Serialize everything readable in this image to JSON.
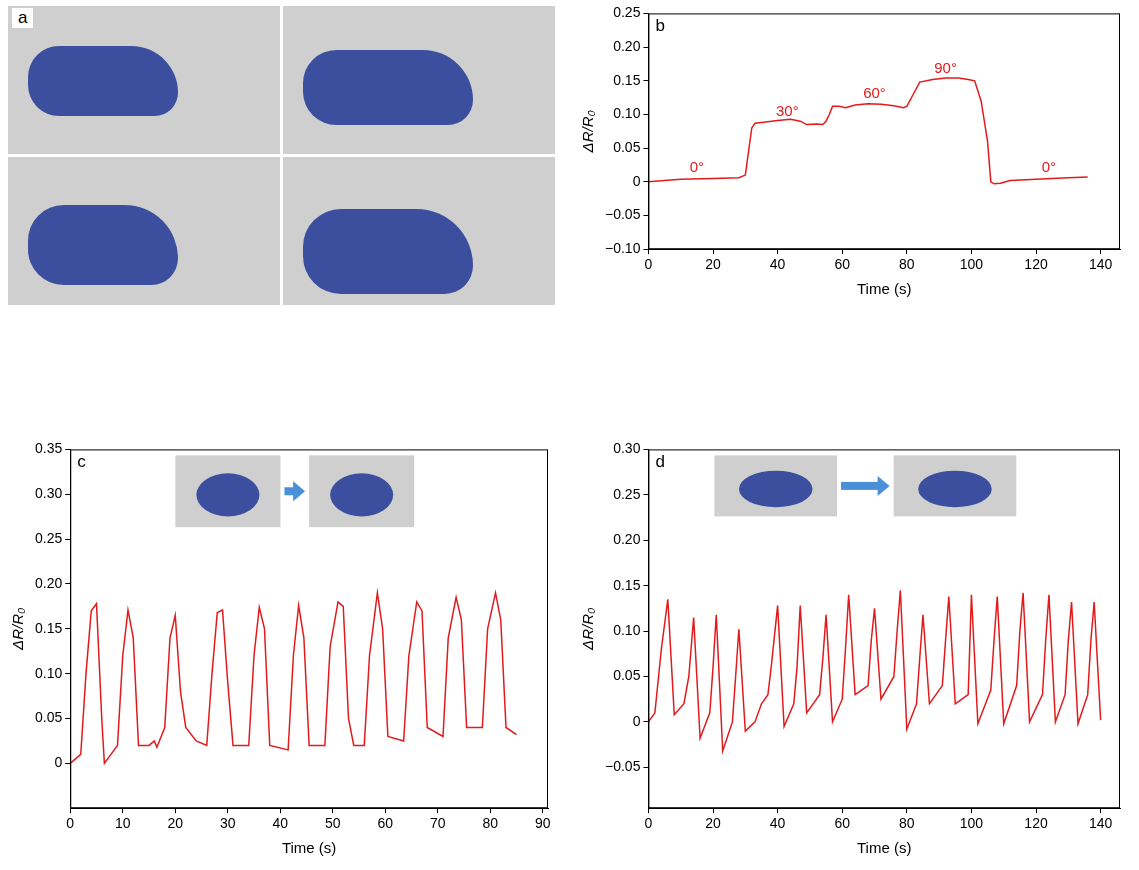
{
  "photo_panel": {
    "panel": "a"
  },
  "chart_data": [
    {
      "panel": "b",
      "type": "line",
      "x_label": "Time (s)",
      "y_label": "ΔR/R₀",
      "color": "#e31a1c",
      "grid": false,
      "x": [
        0,
        5,
        10,
        20,
        28,
        30,
        32,
        33,
        35,
        40,
        44,
        47,
        49,
        52,
        54,
        55,
        56,
        57,
        59,
        61,
        64,
        68,
        72,
        76,
        79,
        80,
        82,
        84,
        88,
        92,
        96,
        99,
        101,
        103,
        105,
        106,
        107,
        109,
        112,
        120,
        130,
        136
      ],
      "values": [
        0,
        0.002,
        0.004,
        0.005,
        0.006,
        0.01,
        0.08,
        0.087,
        0.088,
        0.091,
        0.093,
        0.09,
        0.085,
        0.086,
        0.085,
        0.09,
        0.1,
        0.112,
        0.112,
        0.11,
        0.114,
        0.116,
        0.115,
        0.113,
        0.11,
        0.112,
        0.13,
        0.148,
        0.152,
        0.154,
        0.154,
        0.152,
        0.15,
        0.12,
        0.06,
        0,
        -0.003,
        -0.002,
        0.002,
        0.004,
        0.006,
        0.007
      ],
      "xlim": [
        0,
        146
      ],
      "xticks": [
        0,
        20,
        40,
        60,
        80,
        100,
        120,
        140
      ],
      "ylim": [
        -0.1,
        0.25
      ],
      "yticks": [
        {
          "value": -0.1,
          "label": "−0.10"
        },
        {
          "value": -0.05,
          "label": "−0.05"
        },
        0,
        0.05,
        {
          "value": 0.1,
          "label": "0.10"
        },
        0.15,
        {
          "value": 0.2,
          "label": "0.20"
        },
        0.25
      ],
      "annotations": [
        {
          "text": "0°",
          "x": 15,
          "y": 0.02
        },
        {
          "text": "30°",
          "x": 43,
          "y": 0.104
        },
        {
          "text": "60°",
          "x": 70,
          "y": 0.13
        },
        {
          "text": "90°",
          "x": 92,
          "y": 0.168
        },
        {
          "text": "0°",
          "x": 124,
          "y": 0.02
        }
      ]
    },
    {
      "panel": "c",
      "type": "line",
      "x_label": "Time (s)",
      "y_label": "ΔR/R₀",
      "color": "#e31a1c",
      "grid": false,
      "x": [
        0,
        1,
        2,
        3,
        4,
        5,
        6,
        6.5,
        7.5,
        9,
        10,
        11,
        12,
        13,
        15,
        16,
        16.5,
        18,
        19,
        20,
        21,
        22,
        24,
        26,
        27,
        28,
        29,
        30,
        31,
        34,
        35,
        36,
        37,
        38,
        41.5,
        42.5,
        43.5,
        44.5,
        45.5,
        48.5,
        49.5,
        51,
        52,
        53,
        54,
        56,
        57,
        58.5,
        59.5,
        60.5,
        63.5,
        64.5,
        66,
        67,
        68,
        71,
        72,
        73.5,
        74.5,
        75.5,
        78.5,
        79.5,
        81,
        82,
        83,
        85
      ],
      "values": [
        0,
        0.005,
        0.01,
        0.1,
        0.17,
        0.178,
        0.05,
        0,
        0.008,
        0.02,
        0.12,
        0.171,
        0.14,
        0.02,
        0.02,
        0.025,
        0.018,
        0.04,
        0.14,
        0.165,
        0.08,
        0.04,
        0.025,
        0.02,
        0.1,
        0.168,
        0.171,
        0.09,
        0.02,
        0.02,
        0.12,
        0.174,
        0.15,
        0.02,
        0.015,
        0.12,
        0.176,
        0.14,
        0.02,
        0.02,
        0.13,
        0.18,
        0.175,
        0.05,
        0.02,
        0.02,
        0.12,
        0.19,
        0.15,
        0.03,
        0.025,
        0.12,
        0.18,
        0.17,
        0.04,
        0.03,
        0.14,
        0.185,
        0.16,
        0.04,
        0.04,
        0.15,
        0.19,
        0.16,
        0.04,
        0.032
      ],
      "xlim": [
        0,
        91
      ],
      "xticks": [
        0,
        10,
        20,
        30,
        40,
        50,
        60,
        70,
        80,
        90
      ],
      "ylim": [
        -0.05,
        0.35
      ],
      "yticks": [
        0,
        0.05,
        {
          "value": 0.1,
          "label": "0.10"
        },
        0.15,
        {
          "value": 0.2,
          "label": "0.20"
        },
        0.25,
        {
          "value": 0.3,
          "label": "0.30"
        },
        0.35
      ]
    },
    {
      "panel": "d",
      "type": "line",
      "x_label": "Time (s)",
      "y_label": "ΔR/R₀",
      "color": "#e31a1c",
      "grid": false,
      "x": [
        0,
        2,
        4,
        6,
        8,
        11,
        12.5,
        14,
        16,
        19,
        20,
        21,
        23,
        26,
        27,
        28,
        30,
        33,
        35,
        37,
        38,
        40,
        42,
        45,
        46,
        47,
        49,
        53,
        54,
        55,
        57,
        60,
        61,
        62,
        64,
        68,
        69,
        70,
        72,
        76,
        77,
        78,
        80,
        83,
        84,
        85,
        87,
        91,
        92,
        93,
        95,
        99,
        100,
        102,
        106,
        107,
        108,
        110,
        114,
        115,
        116,
        118,
        122,
        123,
        124,
        126,
        129,
        130,
        131,
        133,
        136,
        137,
        138,
        140
      ],
      "values": [
        0,
        0.01,
        0.08,
        0.135,
        0.008,
        0.02,
        0.05,
        0.115,
        -0.018,
        0.01,
        0.06,
        0.118,
        -0.032,
        0,
        0.05,
        0.102,
        -0.01,
        0,
        0.02,
        0.03,
        0.06,
        0.128,
        -0.005,
        0.02,
        0.06,
        0.128,
        0.01,
        0.03,
        0.07,
        0.118,
        0,
        0.025,
        0.08,
        0.14,
        0.03,
        0.04,
        0.09,
        0.125,
        0.025,
        0.05,
        0.1,
        0.145,
        -0.008,
        0.02,
        0.07,
        0.118,
        0.02,
        0.04,
        0.09,
        0.138,
        0.02,
        0.03,
        0.14,
        -0.002,
        0.035,
        0.09,
        0.138,
        -0.002,
        0.04,
        0.1,
        0.142,
        0,
        0.03,
        0.09,
        0.14,
        0,
        0.03,
        0.09,
        0.132,
        -0.002,
        0.03,
        0.09,
        0.132,
        0.002
      ],
      "xlim": [
        0,
        146
      ],
      "xticks": [
        0,
        20,
        40,
        60,
        80,
        100,
        120,
        140
      ],
      "ylim": [
        -0.095,
        0.3
      ],
      "yticks": [
        {
          "value": -0.05,
          "label": "−0.05"
        },
        0,
        0.05,
        {
          "value": 0.1,
          "label": "0.10"
        },
        0.15,
        {
          "value": 0.2,
          "label": "0.20"
        },
        0.25,
        {
          "value": 0.3,
          "label": "0.30"
        }
      ]
    }
  ]
}
